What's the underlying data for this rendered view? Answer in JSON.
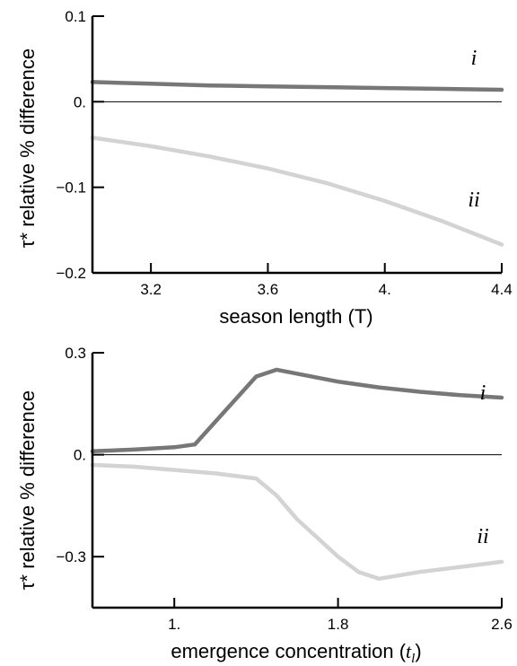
{
  "chart_data": [
    {
      "type": "line",
      "title": "",
      "xlabel": "season length (T)",
      "ylabel": "τ* relative % difference",
      "xlim": [
        3.0,
        4.4
      ],
      "ylim": [
        -0.2,
        0.1
      ],
      "x_ticks": [
        3.2,
        3.6,
        4.0,
        4.4
      ],
      "x_tick_labels": [
        "3.2",
        "3.6",
        "4.",
        "4.4"
      ],
      "y_ticks": [
        -0.2,
        -0.1,
        0.0,
        0.1
      ],
      "y_tick_labels": [
        "−0.2",
        "−0.1",
        "0.",
        "0.1"
      ],
      "zero_line": true,
      "grid": false,
      "series": [
        {
          "name": "i",
          "color": "#777777",
          "x": [
            3.0,
            3.2,
            3.4,
            3.6,
            3.8,
            4.0,
            4.2,
            4.4
          ],
          "y": [
            0.023,
            0.021,
            0.019,
            0.018,
            0.017,
            0.016,
            0.015,
            0.014
          ]
        },
        {
          "name": "ii",
          "color": "#d3d3d3",
          "x": [
            3.0,
            3.2,
            3.4,
            3.6,
            3.8,
            4.0,
            4.2,
            4.4
          ],
          "y": [
            -0.042,
            -0.052,
            -0.064,
            -0.078,
            -0.095,
            -0.116,
            -0.14,
            -0.167
          ]
        }
      ]
    },
    {
      "type": "line",
      "title": "",
      "xlabel": "emergence concentration (t_l)",
      "xlabel_main": "emergence concentration (",
      "xlabel_var": "t",
      "xlabel_sub": "l",
      "xlabel_close": ")",
      "ylabel": "τ* relative % difference",
      "xlim": [
        0.6,
        2.6
      ],
      "ylim": [
        -0.45,
        0.3
      ],
      "x_ticks": [
        1.0,
        1.8,
        2.6
      ],
      "x_tick_labels": [
        "1.",
        "1.8",
        "2.6"
      ],
      "y_ticks": [
        -0.3,
        0.0,
        0.3
      ],
      "y_tick_labels": [
        "−0.3",
        "0.",
        "0.3"
      ],
      "zero_line": true,
      "grid": false,
      "series": [
        {
          "name": "i",
          "color": "#777777",
          "x": [
            0.6,
            0.8,
            1.0,
            1.1,
            1.4,
            1.5,
            1.8,
            2.0,
            2.2,
            2.4,
            2.6
          ],
          "y": [
            0.01,
            0.015,
            0.022,
            0.03,
            0.23,
            0.25,
            0.215,
            0.198,
            0.185,
            0.175,
            0.168
          ]
        },
        {
          "name": "ii",
          "color": "#d3d3d3",
          "x": [
            0.6,
            0.8,
            1.0,
            1.2,
            1.4,
            1.5,
            1.6,
            1.8,
            1.9,
            2.0,
            2.2,
            2.4,
            2.6
          ],
          "y": [
            -0.03,
            -0.035,
            -0.045,
            -0.055,
            -0.07,
            -0.12,
            -0.19,
            -0.3,
            -0.345,
            -0.365,
            -0.345,
            -0.33,
            -0.315
          ]
        }
      ]
    }
  ]
}
